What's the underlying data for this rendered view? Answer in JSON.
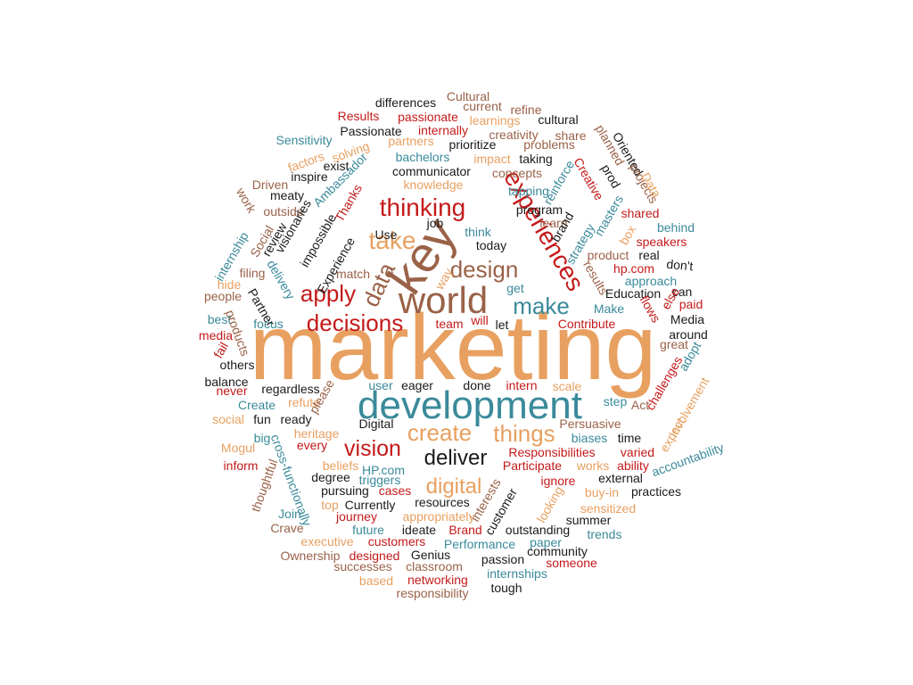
{
  "palette": {
    "orange": "#e8a060",
    "teal": "#3a8a9a",
    "brown": "#9a6248",
    "red": "#c41a1a",
    "black": "#1a1a1a"
  },
  "words": [
    {
      "text": "marketing",
      "color": "orange"
    },
    {
      "text": "development",
      "color": "teal"
    },
    {
      "text": "world",
      "color": "brown"
    },
    {
      "text": "key",
      "color": "brown"
    },
    {
      "text": "experiences",
      "color": "red"
    },
    {
      "text": "thinking",
      "color": "red"
    },
    {
      "text": "design",
      "color": "brown"
    },
    {
      "text": "apply",
      "color": "red"
    },
    {
      "text": "make",
      "color": "teal"
    },
    {
      "text": "take",
      "color": "orange"
    },
    {
      "text": "data",
      "color": "brown"
    },
    {
      "text": "decisions",
      "color": "red"
    },
    {
      "text": "vision",
      "color": "red"
    },
    {
      "text": "create",
      "color": "orange"
    },
    {
      "text": "things",
      "color": "orange"
    },
    {
      "text": "deliver",
      "color": "black"
    },
    {
      "text": "digital",
      "color": "orange"
    },
    {
      "text": "differences",
      "color": "black"
    },
    {
      "text": "Cultural",
      "color": "brown"
    },
    {
      "text": "current",
      "color": "brown"
    },
    {
      "text": "refine",
      "color": "brown"
    },
    {
      "text": "Results",
      "color": "red"
    },
    {
      "text": "passionate",
      "color": "red"
    },
    {
      "text": "learnings",
      "color": "orange"
    },
    {
      "text": "cultural",
      "color": "black"
    },
    {
      "text": "Passionate",
      "color": "black"
    },
    {
      "text": "internally",
      "color": "red"
    },
    {
      "text": "creativity",
      "color": "brown"
    },
    {
      "text": "share",
      "color": "brown"
    },
    {
      "text": "Sensitivity",
      "color": "teal"
    },
    {
      "text": "partners",
      "color": "orange"
    },
    {
      "text": "prioritize",
      "color": "black"
    },
    {
      "text": "problems",
      "color": "brown"
    },
    {
      "text": "solving",
      "color": "orange"
    },
    {
      "text": "bachelors",
      "color": "teal"
    },
    {
      "text": "taking",
      "color": "black"
    },
    {
      "text": "factors",
      "color": "orange"
    },
    {
      "text": "exist",
      "color": "black"
    },
    {
      "text": "impact",
      "color": "orange"
    },
    {
      "text": "communicator",
      "color": "black"
    },
    {
      "text": "concepts",
      "color": "brown"
    },
    {
      "text": "inspire",
      "color": "black"
    },
    {
      "text": "Driven",
      "color": "brown"
    },
    {
      "text": "knowledge",
      "color": "orange"
    },
    {
      "text": "meaty",
      "color": "black"
    },
    {
      "text": "tapping",
      "color": "teal"
    },
    {
      "text": "outside",
      "color": "brown"
    },
    {
      "text": "program",
      "color": "black"
    },
    {
      "text": "job",
      "color": "black"
    },
    {
      "text": "learn",
      "color": "brown"
    },
    {
      "text": "shared",
      "color": "red"
    },
    {
      "text": "think",
      "color": "teal"
    },
    {
      "text": "behind",
      "color": "teal"
    },
    {
      "text": "Use",
      "color": "black"
    },
    {
      "text": "today",
      "color": "black"
    },
    {
      "text": "speakers",
      "color": "red"
    },
    {
      "text": "product",
      "color": "brown"
    },
    {
      "text": "real",
      "color": "black"
    },
    {
      "text": "filing",
      "color": "brown"
    },
    {
      "text": "match",
      "color": "brown"
    },
    {
      "text": "hp.com",
      "color": "red"
    },
    {
      "text": "don't",
      "color": "black"
    },
    {
      "text": "hide",
      "color": "orange"
    },
    {
      "text": "get",
      "color": "teal"
    },
    {
      "text": "approach",
      "color": "teal"
    },
    {
      "text": "Education",
      "color": "black"
    },
    {
      "text": "can",
      "color": "black"
    },
    {
      "text": "people",
      "color": "brown"
    },
    {
      "text": "paid",
      "color": "red"
    },
    {
      "text": "Make",
      "color": "teal"
    },
    {
      "text": "best",
      "color": "teal"
    },
    {
      "text": "focus",
      "color": "teal"
    },
    {
      "text": "team",
      "color": "red"
    },
    {
      "text": "will",
      "color": "red"
    },
    {
      "text": "let",
      "color": "black"
    },
    {
      "text": "Contribute",
      "color": "red"
    },
    {
      "text": "Media",
      "color": "black"
    },
    {
      "text": "media",
      "color": "red"
    },
    {
      "text": "around",
      "color": "black"
    },
    {
      "text": "great",
      "color": "brown"
    },
    {
      "text": "others",
      "color": "black"
    },
    {
      "text": "balance",
      "color": "black"
    },
    {
      "text": "never",
      "color": "red"
    },
    {
      "text": "regardless",
      "color": "black"
    },
    {
      "text": "user",
      "color": "teal"
    },
    {
      "text": "eager",
      "color": "black"
    },
    {
      "text": "done",
      "color": "black"
    },
    {
      "text": "intern",
      "color": "red"
    },
    {
      "text": "scale",
      "color": "orange"
    },
    {
      "text": "Create",
      "color": "teal"
    },
    {
      "text": "refute",
      "color": "orange"
    },
    {
      "text": "step",
      "color": "teal"
    },
    {
      "text": "Act",
      "color": "brown"
    },
    {
      "text": "social",
      "color": "orange"
    },
    {
      "text": "fun",
      "color": "black"
    },
    {
      "text": "ready",
      "color": "black"
    },
    {
      "text": "Digital",
      "color": "black"
    },
    {
      "text": "Persuasive",
      "color": "brown"
    },
    {
      "text": "heritage",
      "color": "orange"
    },
    {
      "text": "big",
      "color": "teal"
    },
    {
      "text": "biases",
      "color": "teal"
    },
    {
      "text": "time",
      "color": "black"
    },
    {
      "text": "every",
      "color": "red"
    },
    {
      "text": "Responsibilities",
      "color": "red"
    },
    {
      "text": "varied",
      "color": "red"
    },
    {
      "text": "inform",
      "color": "red"
    },
    {
      "text": "beliefs",
      "color": "orange"
    },
    {
      "text": "HP.com",
      "color": "teal"
    },
    {
      "text": "Participate",
      "color": "red"
    },
    {
      "text": "works",
      "color": "orange"
    },
    {
      "text": "ability",
      "color": "red"
    },
    {
      "text": "degree",
      "color": "black"
    },
    {
      "text": "cases",
      "color": "red"
    },
    {
      "text": "ignore",
      "color": "red"
    },
    {
      "text": "external",
      "color": "black"
    },
    {
      "text": "pursuing",
      "color": "black"
    },
    {
      "text": "practices",
      "color": "black"
    },
    {
      "text": "buy-in",
      "color": "orange"
    },
    {
      "text": "Join",
      "color": "teal"
    },
    {
      "text": "top",
      "color": "orange"
    },
    {
      "text": "Currently",
      "color": "black"
    },
    {
      "text": "resources",
      "color": "black"
    },
    {
      "text": "sensitized",
      "color": "orange"
    },
    {
      "text": "journey",
      "color": "red"
    },
    {
      "text": "appropriately",
      "color": "orange"
    },
    {
      "text": "summer",
      "color": "black"
    },
    {
      "text": "Crave",
      "color": "brown"
    },
    {
      "text": "future",
      "color": "teal"
    },
    {
      "text": "ideate",
      "color": "black"
    },
    {
      "text": "Brand",
      "color": "red"
    },
    {
      "text": "outstanding",
      "color": "black"
    },
    {
      "text": "trends",
      "color": "teal"
    },
    {
      "text": "executive",
      "color": "orange"
    },
    {
      "text": "customers",
      "color": "red"
    },
    {
      "text": "Performance",
      "color": "teal"
    },
    {
      "text": "paper",
      "color": "teal"
    },
    {
      "text": "Ownership",
      "color": "brown"
    },
    {
      "text": "designed",
      "color": "red"
    },
    {
      "text": "Genius",
      "color": "black"
    },
    {
      "text": "community",
      "color": "black"
    },
    {
      "text": "successes",
      "color": "brown"
    },
    {
      "text": "classroom",
      "color": "brown"
    },
    {
      "text": "passion",
      "color": "black"
    },
    {
      "text": "someone",
      "color": "red"
    },
    {
      "text": "based",
      "color": "orange"
    },
    {
      "text": "networking",
      "color": "red"
    },
    {
      "text": "internships",
      "color": "teal"
    },
    {
      "text": "responsibility",
      "color": "brown"
    },
    {
      "text": "tough",
      "color": "black"
    },
    {
      "text": "Oriented",
      "color": "black"
    },
    {
      "text": "Creative",
      "color": "red"
    },
    {
      "text": "planned",
      "color": "brown"
    },
    {
      "text": "prod",
      "color": "black"
    },
    {
      "text": "projects",
      "color": "brown"
    },
    {
      "text": "Data",
      "color": "orange"
    },
    {
      "text": "reinforce",
      "color": "teal"
    },
    {
      "text": "brand",
      "color": "black"
    },
    {
      "text": "masters",
      "color": "teal"
    },
    {
      "text": "box",
      "color": "orange"
    },
    {
      "text": "strategy",
      "color": "teal"
    },
    {
      "text": "results",
      "color": "brown"
    },
    {
      "text": "flows",
      "color": "red"
    },
    {
      "text": "else",
      "color": "red"
    },
    {
      "text": "adopt",
      "color": "teal"
    },
    {
      "text": "challenges",
      "color": "red"
    },
    {
      "text": "involvement",
      "color": "orange"
    },
    {
      "text": "expect",
      "color": "orange"
    },
    {
      "text": "accountability",
      "color": "teal"
    },
    {
      "text": "Ambassador",
      "color": "teal"
    },
    {
      "text": "Thanks",
      "color": "red"
    },
    {
      "text": "visionaries",
      "color": "black"
    },
    {
      "text": "impossible",
      "color": "black"
    },
    {
      "text": "review",
      "color": "black"
    },
    {
      "text": "Experience",
      "color": "black"
    },
    {
      "text": "work",
      "color": "brown"
    },
    {
      "text": "Social",
      "color": "brown"
    },
    {
      "text": "internship",
      "color": "teal"
    },
    {
      "text": "delivery",
      "color": "teal"
    },
    {
      "text": "Partner",
      "color": "black"
    },
    {
      "text": "products",
      "color": "brown"
    },
    {
      "text": "fail",
      "color": "red"
    },
    {
      "text": "please",
      "color": "brown"
    },
    {
      "text": "cross-functionally",
      "color": "teal"
    },
    {
      "text": "Mogul",
      "color": "orange"
    },
    {
      "text": "thoughtful",
      "color": "brown"
    },
    {
      "text": "triggers",
      "color": "teal"
    },
    {
      "text": "interests",
      "color": "brown"
    },
    {
      "text": "customer",
      "color": "black"
    },
    {
      "text": "looking",
      "color": "orange"
    },
    {
      "text": "way",
      "color": "orange"
    }
  ]
}
